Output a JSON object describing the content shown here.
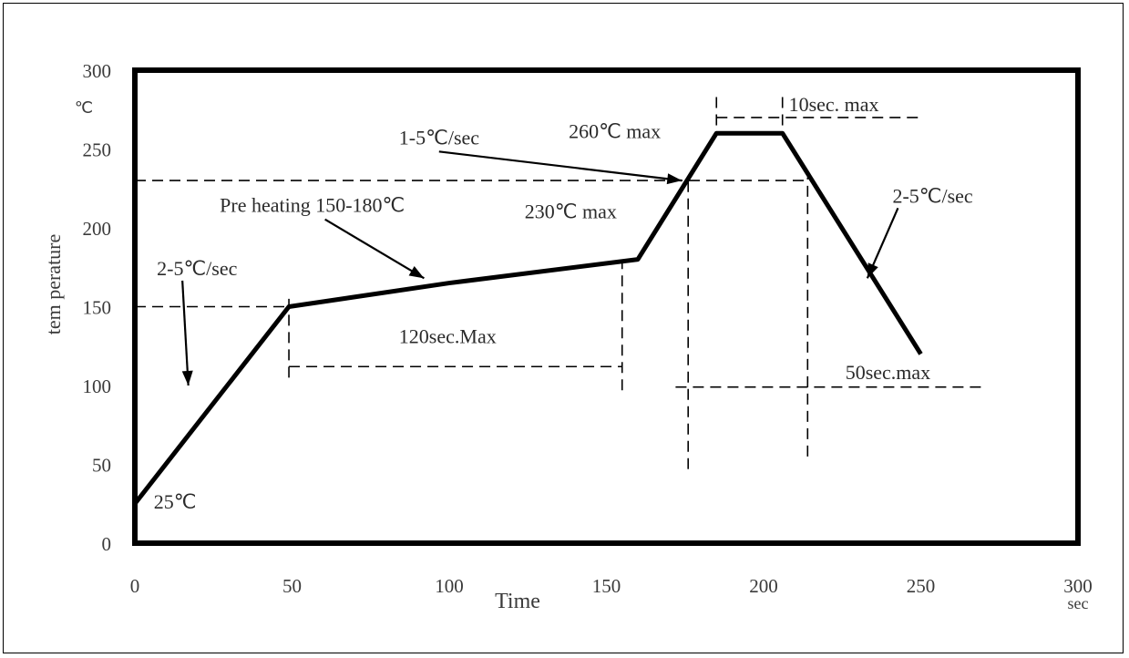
{
  "chart_data": {
    "type": "line",
    "xlabel": "Time",
    "x_unit": "sec",
    "ylabel": "tem perature",
    "y_unit": "℃",
    "xlim": [
      0,
      300
    ],
    "ylim": [
      0,
      300
    ],
    "x_ticks": [
      "0",
      "50",
      "100",
      "150",
      "200",
      "250",
      "300"
    ],
    "y_ticks": [
      "0",
      "50",
      "100",
      "150",
      "200",
      "250",
      "300"
    ],
    "grid": false,
    "series": [
      {
        "x": [
          0,
          49,
          100,
          160,
          185,
          206,
          250
        ],
        "y": [
          25,
          150,
          165,
          180,
          260,
          260,
          120
        ]
      }
    ],
    "guides": {
      "h": [
        {
          "y": 150,
          "x0": 0,
          "x1": 49
        },
        {
          "y": 230,
          "x0": 0,
          "x1": 215
        },
        {
          "y": 112,
          "x0": 49,
          "x1": 155
        },
        {
          "y": 99,
          "x0": 172,
          "x1": 270
        },
        {
          "y": 270,
          "x0": 185,
          "x1": 250
        }
      ],
      "v": [
        {
          "x": 49,
          "y0": 105,
          "y1": 155
        },
        {
          "y1": 180,
          "x": 155,
          "y0": 97
        },
        {
          "x": 176,
          "y0": 47,
          "y1": 232
        },
        {
          "x": 214,
          "y0": 55,
          "y1": 232
        },
        {
          "x": 185,
          "y0": 265,
          "y1": 286
        },
        {
          "x": 206,
          "y0": 265,
          "y1": 286
        }
      ]
    },
    "annotations": [
      {
        "text": "25℃",
        "x": 6,
        "y": 22
      },
      {
        "text": "2-5℃/sec",
        "x": 7,
        "y": 170,
        "arrow_to": [
          17,
          100
        ]
      },
      {
        "text": "Pre heating  150-180℃",
        "x": 27,
        "y": 210,
        "arrow_to": [
          92,
          168
        ]
      },
      {
        "text": "120sec.Max",
        "x": 84,
        "y": 127
      },
      {
        "text": "1-5℃/sec",
        "x": 84,
        "y": 253,
        "arrow_to": [
          174,
          230
        ]
      },
      {
        "text": "260℃  max",
        "x": 138,
        "y": 257
      },
      {
        "text": "230℃  max",
        "x": 124,
        "y": 206
      },
      {
        "text": "10sec. max",
        "x": 208,
        "y": 274
      },
      {
        "text": "2-5℃/sec",
        "x": 241,
        "y": 216,
        "arrow_to": [
          233,
          168
        ]
      },
      {
        "text": "50sec.max",
        "x": 226,
        "y": 104
      }
    ]
  }
}
